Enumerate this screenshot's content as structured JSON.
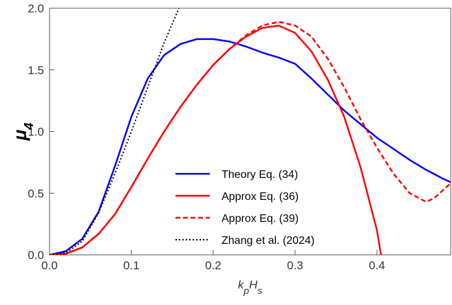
{
  "chart_data": {
    "type": "line",
    "xlabel": [
      {
        "text": "k"
      },
      {
        "text": "p",
        "sub": true
      },
      {
        "text": "H"
      },
      {
        "text": "s",
        "sub": true
      }
    ],
    "ylabel": [
      {
        "text": "μ"
      },
      {
        "text": "4",
        "sub": true
      }
    ],
    "xlim": [
      0,
      0.49
    ],
    "ylim": [
      0,
      2.0
    ],
    "xticks": [
      {
        "value": 0,
        "label": "0.0"
      },
      0.1,
      0.2,
      0.3,
      0.4
    ],
    "yticks": [
      {
        "value": 0,
        "label": "0.0"
      },
      0.5,
      {
        "value": 1,
        "label": "1.0"
      },
      1.5,
      {
        "value": 2,
        "label": "2.0"
      }
    ],
    "series": [
      {
        "name": "Theory Eq. (34)",
        "color": "#0000ff",
        "dash": "solid",
        "x": [
          0,
          0.02,
          0.04,
          0.06,
          0.08,
          0.1,
          0.12,
          0.14,
          0.16,
          0.18,
          0.2,
          0.22,
          0.24,
          0.26,
          0.28,
          0.3,
          0.32,
          0.34,
          0.36,
          0.38,
          0.4,
          0.42,
          0.44,
          0.46,
          0.48,
          0.49
        ],
        "values": [
          0,
          0.03,
          0.13,
          0.35,
          0.72,
          1.12,
          1.43,
          1.62,
          1.71,
          1.75,
          1.75,
          1.73,
          1.69,
          1.64,
          1.6,
          1.55,
          1.43,
          1.3,
          1.17,
          1.06,
          0.95,
          0.86,
          0.77,
          0.69,
          0.62,
          0.59
        ]
      },
      {
        "name": "Approx Eq. (36)",
        "color": "#ff0000",
        "dash": "solid",
        "x": [
          0,
          0.02,
          0.04,
          0.06,
          0.08,
          0.1,
          0.12,
          0.14,
          0.16,
          0.18,
          0.2,
          0.22,
          0.24,
          0.26,
          0.28,
          0.3,
          0.32,
          0.34,
          0.36,
          0.38,
          0.4,
          0.405
        ],
        "values": [
          0,
          0.01,
          0.06,
          0.17,
          0.33,
          0.55,
          0.78,
          1.0,
          1.2,
          1.38,
          1.54,
          1.67,
          1.77,
          1.84,
          1.86,
          1.8,
          1.65,
          1.42,
          1.12,
          0.71,
          0.2,
          0
        ]
      },
      {
        "name": "Approx Eq. (39)",
        "color": "#ff0000",
        "dash": "dashed",
        "x": [
          0,
          0.02,
          0.04,
          0.06,
          0.08,
          0.1,
          0.12,
          0.14,
          0.16,
          0.18,
          0.2,
          0.22,
          0.24,
          0.26,
          0.28,
          0.3,
          0.32,
          0.34,
          0.36,
          0.38,
          0.4,
          0.42,
          0.44,
          0.46,
          0.47,
          0.49
        ],
        "values": [
          0,
          0.01,
          0.06,
          0.17,
          0.33,
          0.55,
          0.78,
          1.0,
          1.2,
          1.38,
          1.54,
          1.67,
          1.78,
          1.86,
          1.89,
          1.86,
          1.77,
          1.59,
          1.36,
          1.1,
          0.87,
          0.66,
          0.5,
          0.43,
          0.46,
          0.58
        ]
      },
      {
        "name": "Zhang et al. (2024)",
        "color": "#000000",
        "dash": "dotted",
        "x": [
          0,
          0.02,
          0.04,
          0.06,
          0.08,
          0.1,
          0.12,
          0.14,
          0.158
        ],
        "values": [
          0,
          0.015,
          0.11,
          0.34,
          0.66,
          1.0,
          1.36,
          1.72,
          2.0
        ]
      }
    ]
  }
}
